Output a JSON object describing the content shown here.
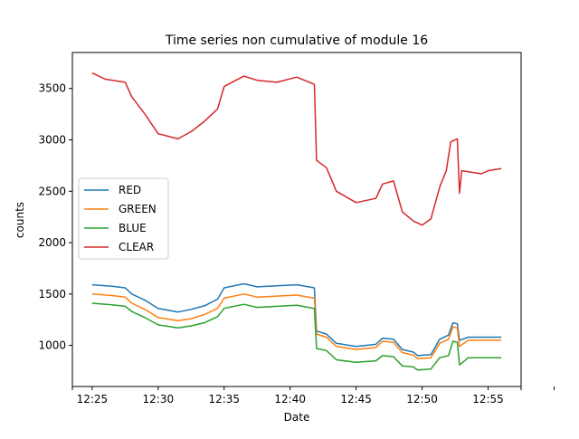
{
  "chart_data": {
    "type": "line",
    "title": "Time series non cumulative of module 16",
    "xlabel": "Date",
    "ylabel": "counts",
    "xlim": [
      "12:23:30",
      "12:57:30"
    ],
    "ylim": [
      600,
      3850
    ],
    "xticks": [
      "12:25",
      "12:30",
      "12:35",
      "12:40",
      "12:45",
      "12:50",
      "12:55",
      ""
    ],
    "yticks": [
      1000,
      1500,
      2000,
      2500,
      3000,
      3500
    ],
    "grid": false,
    "legend": {
      "placement": "center-left"
    },
    "series": [
      {
        "name": "RED",
        "color": "#1f77b4",
        "points": [
          [
            "12:25:00",
            1590
          ],
          [
            "12:26:30",
            1575
          ],
          [
            "12:27:30",
            1560
          ],
          [
            "12:28:00",
            1500
          ],
          [
            "12:29:00",
            1440
          ],
          [
            "12:30:00",
            1360
          ],
          [
            "12:31:30",
            1325
          ],
          [
            "12:32:30",
            1350
          ],
          [
            "12:33:30",
            1385
          ],
          [
            "12:34:30",
            1450
          ],
          [
            "12:35:00",
            1560
          ],
          [
            "12:36:30",
            1600
          ],
          [
            "12:37:30",
            1570
          ],
          [
            "12:39:00",
            1580
          ],
          [
            "12:40:30",
            1590
          ],
          [
            "12:41:50",
            1560
          ],
          [
            "12:42:00",
            1140
          ],
          [
            "12:42:45",
            1110
          ],
          [
            "12:43:30",
            1020
          ],
          [
            "12:45:00",
            990
          ],
          [
            "12:46:30",
            1010
          ],
          [
            "12:47:00",
            1070
          ],
          [
            "12:47:50",
            1060
          ],
          [
            "12:48:30",
            960
          ],
          [
            "12:49:20",
            935
          ],
          [
            "12:49:40",
            900
          ],
          [
            "12:50:40",
            910
          ],
          [
            "12:51:20",
            1060
          ],
          [
            "12:52:00",
            1100
          ],
          [
            "12:52:20",
            1220
          ],
          [
            "12:52:40",
            1210
          ],
          [
            "12:52:50",
            1050
          ],
          [
            "12:53:30",
            1080
          ],
          [
            "12:56:00",
            1080
          ]
        ]
      },
      {
        "name": "GREEN",
        "color": "#ff7f0e",
        "points": [
          [
            "12:25:00",
            1500
          ],
          [
            "12:26:30",
            1485
          ],
          [
            "12:27:30",
            1470
          ],
          [
            "12:28:00",
            1410
          ],
          [
            "12:29:00",
            1350
          ],
          [
            "12:30:00",
            1270
          ],
          [
            "12:31:30",
            1240
          ],
          [
            "12:32:30",
            1260
          ],
          [
            "12:33:30",
            1300
          ],
          [
            "12:34:30",
            1360
          ],
          [
            "12:35:00",
            1460
          ],
          [
            "12:36:30",
            1500
          ],
          [
            "12:37:30",
            1470
          ],
          [
            "12:39:00",
            1480
          ],
          [
            "12:40:30",
            1490
          ],
          [
            "12:41:50",
            1460
          ],
          [
            "12:42:00",
            1110
          ],
          [
            "12:42:45",
            1080
          ],
          [
            "12:43:30",
            990
          ],
          [
            "12:45:00",
            960
          ],
          [
            "12:46:30",
            980
          ],
          [
            "12:47:00",
            1040
          ],
          [
            "12:47:50",
            1030
          ],
          [
            "12:48:30",
            930
          ],
          [
            "12:49:20",
            905
          ],
          [
            "12:49:40",
            870
          ],
          [
            "12:50:40",
            880
          ],
          [
            "12:51:20",
            1020
          ],
          [
            "12:52:00",
            1060
          ],
          [
            "12:52:20",
            1180
          ],
          [
            "12:52:40",
            1170
          ],
          [
            "12:52:50",
            990
          ],
          [
            "12:53:30",
            1050
          ],
          [
            "12:56:00",
            1050
          ]
        ]
      },
      {
        "name": "BLUE",
        "color": "#2ca02c",
        "points": [
          [
            "12:25:00",
            1410
          ],
          [
            "12:26:30",
            1395
          ],
          [
            "12:27:30",
            1380
          ],
          [
            "12:28:00",
            1330
          ],
          [
            "12:29:00",
            1270
          ],
          [
            "12:30:00",
            1200
          ],
          [
            "12:31:30",
            1170
          ],
          [
            "12:32:30",
            1190
          ],
          [
            "12:33:30",
            1220
          ],
          [
            "12:34:30",
            1280
          ],
          [
            "12:35:00",
            1360
          ],
          [
            "12:36:30",
            1400
          ],
          [
            "12:37:30",
            1370
          ],
          [
            "12:39:00",
            1380
          ],
          [
            "12:40:30",
            1390
          ],
          [
            "12:41:50",
            1360
          ],
          [
            "12:42:00",
            970
          ],
          [
            "12:42:45",
            950
          ],
          [
            "12:43:30",
            860
          ],
          [
            "12:45:00",
            835
          ],
          [
            "12:46:30",
            850
          ],
          [
            "12:47:00",
            900
          ],
          [
            "12:47:50",
            890
          ],
          [
            "12:48:30",
            800
          ],
          [
            "12:49:20",
            790
          ],
          [
            "12:49:40",
            760
          ],
          [
            "12:50:40",
            770
          ],
          [
            "12:51:20",
            880
          ],
          [
            "12:52:00",
            900
          ],
          [
            "12:52:20",
            1040
          ],
          [
            "12:52:40",
            1030
          ],
          [
            "12:52:50",
            810
          ],
          [
            "12:53:30",
            880
          ],
          [
            "12:56:00",
            880
          ]
        ]
      },
      {
        "name": "CLEAR",
        "color": "#d62728",
        "points": [
          [
            "12:25:00",
            3650
          ],
          [
            "12:26:00",
            3590
          ],
          [
            "12:27:30",
            3560
          ],
          [
            "12:28:00",
            3420
          ],
          [
            "12:29:00",
            3250
          ],
          [
            "12:30:00",
            3060
          ],
          [
            "12:31:30",
            3010
          ],
          [
            "12:32:30",
            3080
          ],
          [
            "12:33:30",
            3180
          ],
          [
            "12:34:30",
            3300
          ],
          [
            "12:35:00",
            3520
          ],
          [
            "12:36:30",
            3620
          ],
          [
            "12:37:30",
            3580
          ],
          [
            "12:39:00",
            3560
          ],
          [
            "12:40:30",
            3610
          ],
          [
            "12:41:50",
            3540
          ],
          [
            "12:42:00",
            2800
          ],
          [
            "12:42:45",
            2730
          ],
          [
            "12:43:30",
            2500
          ],
          [
            "12:45:00",
            2390
          ],
          [
            "12:46:30",
            2430
          ],
          [
            "12:47:00",
            2570
          ],
          [
            "12:47:50",
            2600
          ],
          [
            "12:48:30",
            2300
          ],
          [
            "12:49:20",
            2210
          ],
          [
            "12:50:00",
            2170
          ],
          [
            "12:50:40",
            2230
          ],
          [
            "12:51:20",
            2540
          ],
          [
            "12:51:50",
            2700
          ],
          [
            "12:52:10",
            2980
          ],
          [
            "12:52:40",
            3010
          ],
          [
            "12:52:50",
            2480
          ],
          [
            "12:53:00",
            2700
          ],
          [
            "12:54:30",
            2670
          ],
          [
            "12:55:00",
            2700
          ],
          [
            "12:56:00",
            2720
          ]
        ]
      }
    ]
  }
}
